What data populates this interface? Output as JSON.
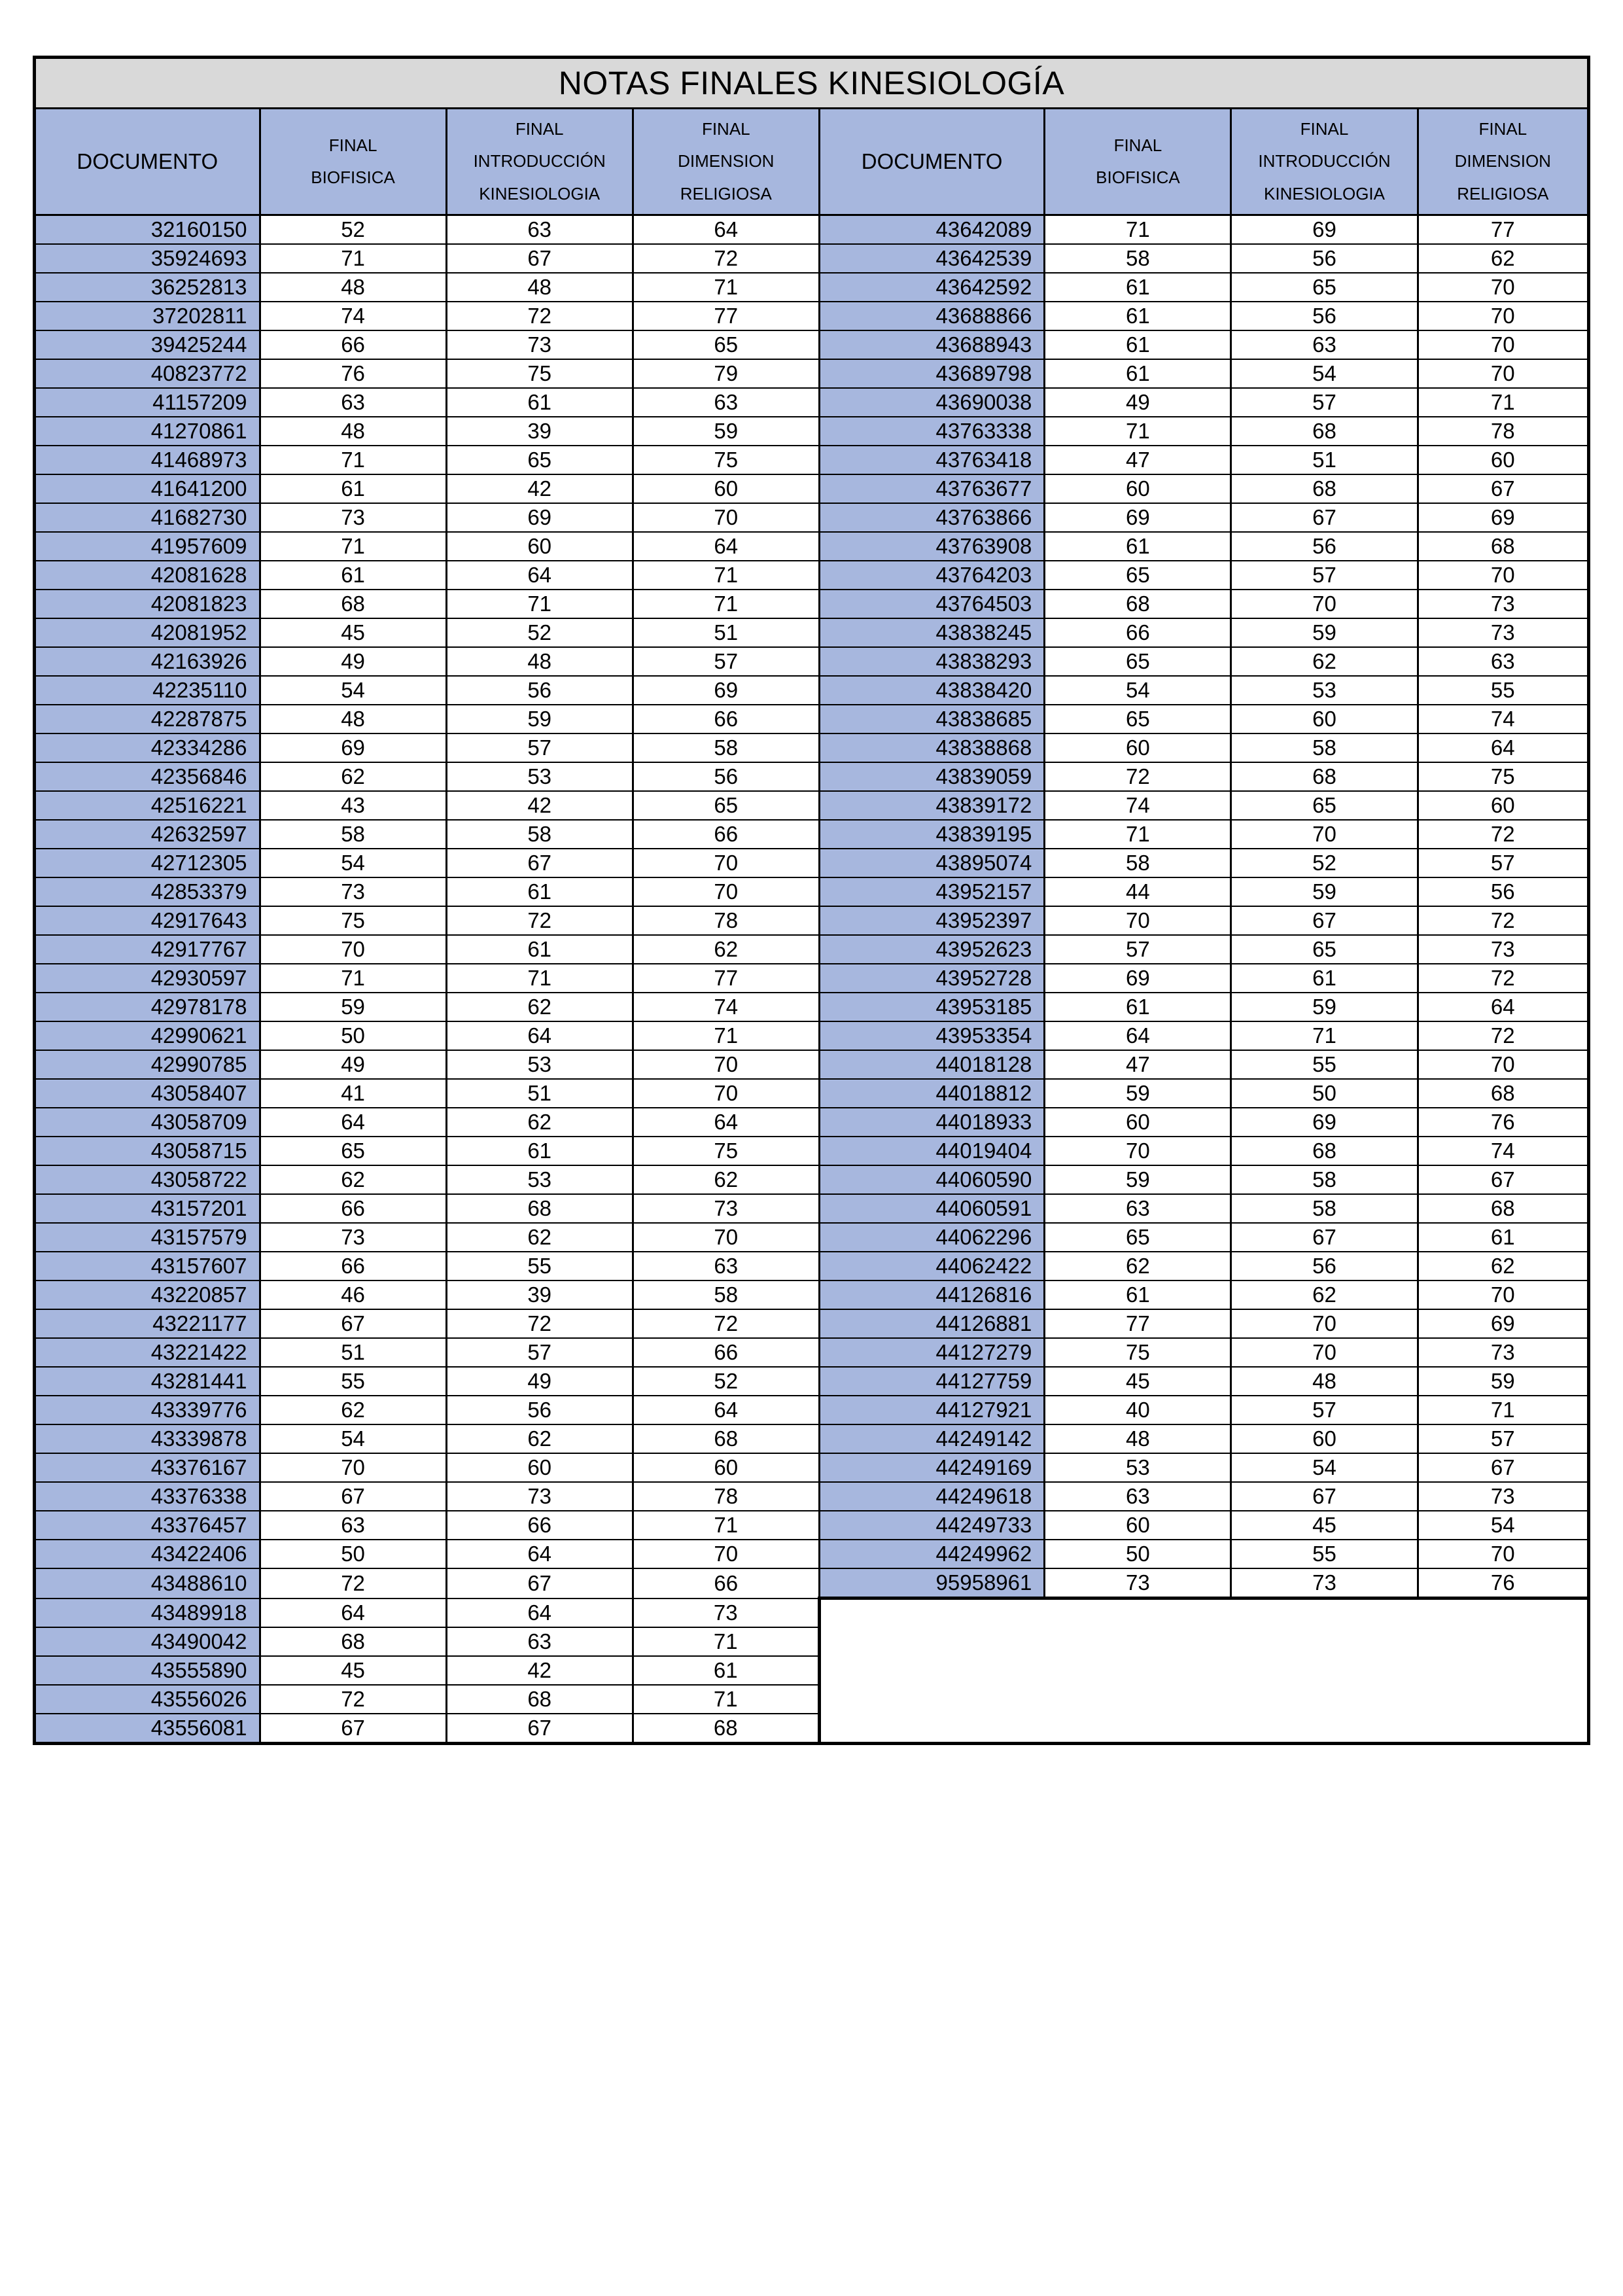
{
  "title": "NOTAS FINALES KINESIOLOGÍA",
  "columns": {
    "doc": "DOCUMENTO",
    "bio": "FINAL\nBIOFISICA",
    "intro": "FINAL\nINTRODUCCIÓN\nKINESIOLOGIA",
    "dim": "FINAL\nDIMENSION\nRELIGIOSA"
  },
  "colors": {
    "title_bg": "#d9d9d9",
    "header_bg": "#a7b7de",
    "doc_cell_bg": "#a7b7de",
    "border": "#000000",
    "page_bg": "#ffffff"
  },
  "left_rows": [
    [
      "32160150",
      "52",
      "63",
      "64"
    ],
    [
      "35924693",
      "71",
      "67",
      "72"
    ],
    [
      "36252813",
      "48",
      "48",
      "71"
    ],
    [
      "37202811",
      "74",
      "72",
      "77"
    ],
    [
      "39425244",
      "66",
      "73",
      "65"
    ],
    [
      "40823772",
      "76",
      "75",
      "79"
    ],
    [
      "41157209",
      "63",
      "61",
      "63"
    ],
    [
      "41270861",
      "48",
      "39",
      "59"
    ],
    [
      "41468973",
      "71",
      "65",
      "75"
    ],
    [
      "41641200",
      "61",
      "42",
      "60"
    ],
    [
      "41682730",
      "73",
      "69",
      "70"
    ],
    [
      "41957609",
      "71",
      "60",
      "64"
    ],
    [
      "42081628",
      "61",
      "64",
      "71"
    ],
    [
      "42081823",
      "68",
      "71",
      "71"
    ],
    [
      "42081952",
      "45",
      "52",
      "51"
    ],
    [
      "42163926",
      "49",
      "48",
      "57"
    ],
    [
      "42235110",
      "54",
      "56",
      "69"
    ],
    [
      "42287875",
      "48",
      "59",
      "66"
    ],
    [
      "42334286",
      "69",
      "57",
      "58"
    ],
    [
      "42356846",
      "62",
      "53",
      "56"
    ],
    [
      "42516221",
      "43",
      "42",
      "65"
    ],
    [
      "42632597",
      "58",
      "58",
      "66"
    ],
    [
      "42712305",
      "54",
      "67",
      "70"
    ],
    [
      "42853379",
      "73",
      "61",
      "70"
    ],
    [
      "42917643",
      "75",
      "72",
      "78"
    ],
    [
      "42917767",
      "70",
      "61",
      "62"
    ],
    [
      "42930597",
      "71",
      "71",
      "77"
    ],
    [
      "42978178",
      "59",
      "62",
      "74"
    ],
    [
      "42990621",
      "50",
      "64",
      "71"
    ],
    [
      "42990785",
      "49",
      "53",
      "70"
    ],
    [
      "43058407",
      "41",
      "51",
      "70"
    ],
    [
      "43058709",
      "64",
      "62",
      "64"
    ],
    [
      "43058715",
      "65",
      "61",
      "75"
    ],
    [
      "43058722",
      "62",
      "53",
      "62"
    ],
    [
      "43157201",
      "66",
      "68",
      "73"
    ],
    [
      "43157579",
      "73",
      "62",
      "70"
    ],
    [
      "43157607",
      "66",
      "55",
      "63"
    ],
    [
      "43220857",
      "46",
      "39",
      "58"
    ],
    [
      "43221177",
      "67",
      "72",
      "72"
    ],
    [
      "43221422",
      "51",
      "57",
      "66"
    ],
    [
      "43281441",
      "55",
      "49",
      "52"
    ],
    [
      "43339776",
      "62",
      "56",
      "64"
    ],
    [
      "43339878",
      "54",
      "62",
      "68"
    ],
    [
      "43376167",
      "70",
      "60",
      "60"
    ],
    [
      "43376338",
      "67",
      "73",
      "78"
    ],
    [
      "43376457",
      "63",
      "66",
      "71"
    ],
    [
      "43422406",
      "50",
      "64",
      "70"
    ],
    [
      "43488610",
      "72",
      "67",
      "66"
    ],
    [
      "43489918",
      "64",
      "64",
      "73"
    ],
    [
      "43490042",
      "68",
      "63",
      "71"
    ],
    [
      "43555890",
      "45",
      "42",
      "61"
    ],
    [
      "43556026",
      "72",
      "68",
      "71"
    ],
    [
      "43556081",
      "67",
      "67",
      "68"
    ]
  ],
  "right_rows": [
    [
      "43642089",
      "71",
      "69",
      "77"
    ],
    [
      "43642539",
      "58",
      "56",
      "62"
    ],
    [
      "43642592",
      "61",
      "65",
      "70"
    ],
    [
      "43688866",
      "61",
      "56",
      "70"
    ],
    [
      "43688943",
      "61",
      "63",
      "70"
    ],
    [
      "43689798",
      "61",
      "54",
      "70"
    ],
    [
      "43690038",
      "49",
      "57",
      "71"
    ],
    [
      "43763338",
      "71",
      "68",
      "78"
    ],
    [
      "43763418",
      "47",
      "51",
      "60"
    ],
    [
      "43763677",
      "60",
      "68",
      "67"
    ],
    [
      "43763866",
      "69",
      "67",
      "69"
    ],
    [
      "43763908",
      "61",
      "56",
      "68"
    ],
    [
      "43764203",
      "65",
      "57",
      "70"
    ],
    [
      "43764503",
      "68",
      "70",
      "73"
    ],
    [
      "43838245",
      "66",
      "59",
      "73"
    ],
    [
      "43838293",
      "65",
      "62",
      "63"
    ],
    [
      "43838420",
      "54",
      "53",
      "55"
    ],
    [
      "43838685",
      "65",
      "60",
      "74"
    ],
    [
      "43838868",
      "60",
      "58",
      "64"
    ],
    [
      "43839059",
      "72",
      "68",
      "75"
    ],
    [
      "43839172",
      "74",
      "65",
      "60"
    ],
    [
      "43839195",
      "71",
      "70",
      "72"
    ],
    [
      "43895074",
      "58",
      "52",
      "57"
    ],
    [
      "43952157",
      "44",
      "59",
      "56"
    ],
    [
      "43952397",
      "70",
      "67",
      "72"
    ],
    [
      "43952623",
      "57",
      "65",
      "73"
    ],
    [
      "43952728",
      "69",
      "61",
      "72"
    ],
    [
      "43953185",
      "61",
      "59",
      "64"
    ],
    [
      "43953354",
      "64",
      "71",
      "72"
    ],
    [
      "44018128",
      "47",
      "55",
      "70"
    ],
    [
      "44018812",
      "59",
      "50",
      "68"
    ],
    [
      "44018933",
      "60",
      "69",
      "76"
    ],
    [
      "44019404",
      "70",
      "68",
      "74"
    ],
    [
      "44060590",
      "59",
      "58",
      "67"
    ],
    [
      "44060591",
      "63",
      "58",
      "68"
    ],
    [
      "44062296",
      "65",
      "67",
      "61"
    ],
    [
      "44062422",
      "62",
      "56",
      "62"
    ],
    [
      "44126816",
      "61",
      "62",
      "70"
    ],
    [
      "44126881",
      "77",
      "70",
      "69"
    ],
    [
      "44127279",
      "75",
      "70",
      "73"
    ],
    [
      "44127759",
      "45",
      "48",
      "59"
    ],
    [
      "44127921",
      "40",
      "57",
      "71"
    ],
    [
      "44249142",
      "48",
      "60",
      "57"
    ],
    [
      "44249169",
      "53",
      "54",
      "67"
    ],
    [
      "44249618",
      "63",
      "67",
      "73"
    ],
    [
      "44249733",
      "60",
      "45",
      "54"
    ],
    [
      "44249962",
      "50",
      "55",
      "70"
    ],
    [
      "95958961",
      "73",
      "73",
      "76"
    ]
  ]
}
